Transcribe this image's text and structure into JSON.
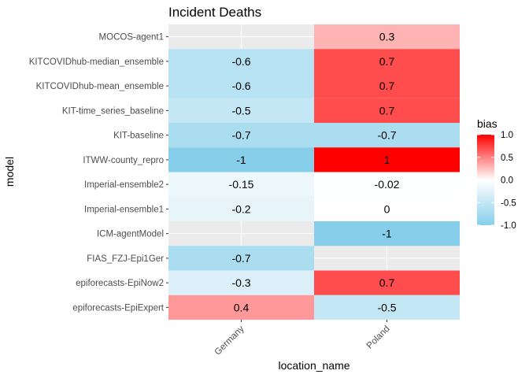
{
  "chart_data": {
    "type": "heatmap",
    "title": "Incident Deaths",
    "xlabel": "location_name",
    "ylabel": "model",
    "x_categories": [
      "Germany",
      "Poland"
    ],
    "y_categories": [
      "MOCOS-agent1",
      "KITCOVIDhub-median_ensemble",
      "KITCOVIDhub-mean_ensemble",
      "KIT-time_series_baseline",
      "KIT-baseline",
      "ITWW-county_repro",
      "Imperial-ensemble2",
      "Imperial-ensemble1",
      "ICM-agentModel",
      "FIAS_FZJ-Epi1Ger",
      "epiforecasts-EpiNow2",
      "epiforecasts-EpiExpert"
    ],
    "cells": [
      {
        "model": "MOCOS-agent1",
        "location": "Poland",
        "value": 0.3,
        "label": "0.3"
      },
      {
        "model": "KITCOVIDhub-median_ensemble",
        "location": "Germany",
        "value": -0.6,
        "label": "-0.6"
      },
      {
        "model": "KITCOVIDhub-median_ensemble",
        "location": "Poland",
        "value": 0.7,
        "label": "0.7"
      },
      {
        "model": "KITCOVIDhub-mean_ensemble",
        "location": "Germany",
        "value": -0.6,
        "label": "-0.6"
      },
      {
        "model": "KITCOVIDhub-mean_ensemble",
        "location": "Poland",
        "value": 0.7,
        "label": "0.7"
      },
      {
        "model": "KIT-time_series_baseline",
        "location": "Germany",
        "value": -0.5,
        "label": "-0.5"
      },
      {
        "model": "KIT-time_series_baseline",
        "location": "Poland",
        "value": 0.7,
        "label": "0.7"
      },
      {
        "model": "KIT-baseline",
        "location": "Germany",
        "value": -0.7,
        "label": "-0.7"
      },
      {
        "model": "KIT-baseline",
        "location": "Poland",
        "value": -0.7,
        "label": "-0.7"
      },
      {
        "model": "ITWW-county_repro",
        "location": "Germany",
        "value": -1,
        "label": "-1"
      },
      {
        "model": "ITWW-county_repro",
        "location": "Poland",
        "value": 1,
        "label": "1"
      },
      {
        "model": "Imperial-ensemble2",
        "location": "Germany",
        "value": -0.15,
        "label": "-0.15"
      },
      {
        "model": "Imperial-ensemble2",
        "location": "Poland",
        "value": -0.02,
        "label": "-0.02"
      },
      {
        "model": "Imperial-ensemble1",
        "location": "Germany",
        "value": -0.2,
        "label": "-0.2"
      },
      {
        "model": "Imperial-ensemble1",
        "location": "Poland",
        "value": 0,
        "label": "0"
      },
      {
        "model": "ICM-agentModel",
        "location": "Poland",
        "value": -1,
        "label": "-1"
      },
      {
        "model": "FIAS_FZJ-Epi1Ger",
        "location": "Germany",
        "value": -0.7,
        "label": "-0.7"
      },
      {
        "model": "epiforecasts-EpiNow2",
        "location": "Germany",
        "value": -0.3,
        "label": "-0.3"
      },
      {
        "model": "epiforecasts-EpiNow2",
        "location": "Poland",
        "value": 0.7,
        "label": "0.7"
      },
      {
        "model": "epiforecasts-EpiExpert",
        "location": "Germany",
        "value": 0.4,
        "label": "0.4"
      },
      {
        "model": "epiforecasts-EpiExpert",
        "location": "Poland",
        "value": -0.5,
        "label": "-0.5"
      }
    ],
    "legend": {
      "title": "bias",
      "ticks": [
        1.0,
        0.5,
        0.0,
        -0.5,
        -1.0
      ],
      "tick_labels": [
        "1.0",
        "0.5",
        "0.0",
        "-0.5",
        "-1.0"
      ],
      "placement": "right"
    },
    "color_scale": {
      "low": "#87ceeb",
      "mid": "#ffffff",
      "high": "#ff0000",
      "limits": [
        -1,
        1
      ]
    },
    "panel_background": "#ebebeb",
    "grid": true
  }
}
